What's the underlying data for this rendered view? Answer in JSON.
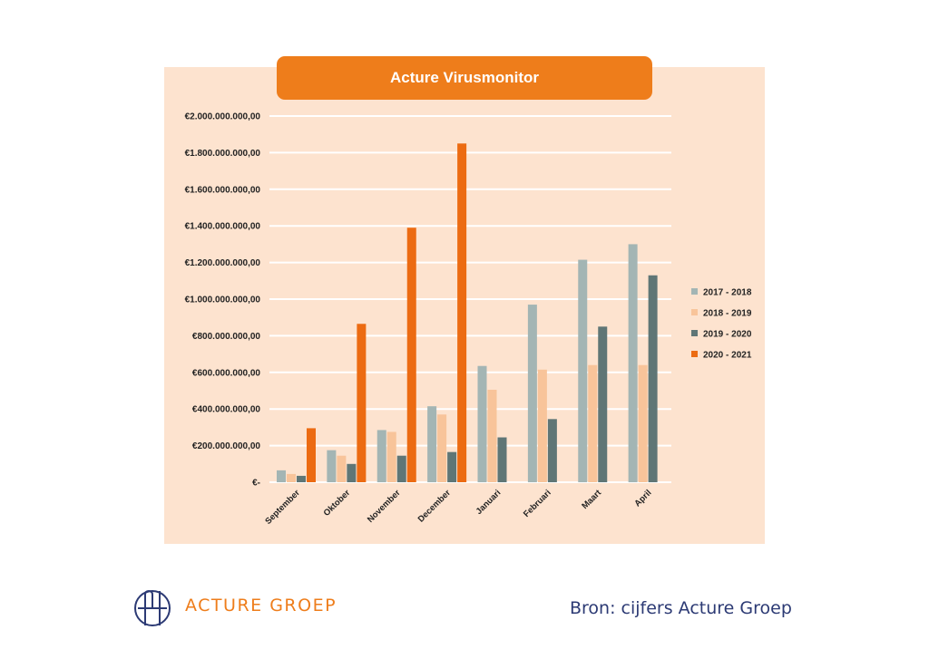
{
  "chart_data": {
    "type": "bar",
    "title": "Acture Virusmonitor",
    "categories": [
      "September",
      "Oktober",
      "November",
      "December",
      "Januari",
      "Februari",
      "Maart",
      "April"
    ],
    "ylim": [
      0,
      2000000000
    ],
    "yticks": [
      {
        "value": 0,
        "label": "€-"
      },
      {
        "value": 200000000,
        "label": "€200.000.000,00"
      },
      {
        "value": 400000000,
        "label": "€400.000.000,00"
      },
      {
        "value": 600000000,
        "label": "€600.000.000,00"
      },
      {
        "value": 800000000,
        "label": "€800.000.000,00"
      },
      {
        "value": 1000000000,
        "label": "€1.000.000.000,00"
      },
      {
        "value": 1200000000,
        "label": "€1.200.000.000,00"
      },
      {
        "value": 1400000000,
        "label": "€1.400.000.000,00"
      },
      {
        "value": 1600000000,
        "label": "€1.600.000.000,00"
      },
      {
        "value": 1800000000,
        "label": "€1.800.000.000,00"
      },
      {
        "value": 2000000000,
        "label": "€2.000.000.000,00"
      }
    ],
    "grid": true,
    "legend_position": "right",
    "series": [
      {
        "name": "2017 - 2018",
        "color": "#a3b5b4",
        "values": [
          65000000,
          175000000,
          285000000,
          415000000,
          635000000,
          970000000,
          1215000000,
          1300000000
        ]
      },
      {
        "name": "2018 - 2019",
        "color": "#f8c49a",
        "values": [
          45000000,
          145000000,
          275000000,
          370000000,
          505000000,
          615000000,
          640000000,
          640000000
        ]
      },
      {
        "name": "2019 - 2020",
        "color": "#5f7676",
        "values": [
          35000000,
          100000000,
          145000000,
          165000000,
          245000000,
          345000000,
          850000000,
          1130000000
        ]
      },
      {
        "name": "2020 - 2021",
        "color": "#ec6b12",
        "values": [
          295000000,
          865000000,
          1390000000,
          1850000000,
          null,
          null,
          null,
          null
        ]
      }
    ]
  },
  "footer": {
    "brand": "ACTURE GROEP",
    "source": "Bron: cijfers Acture Groep",
    "brand_color": "#ee7d1b",
    "logo_color": "#2c3a74"
  }
}
